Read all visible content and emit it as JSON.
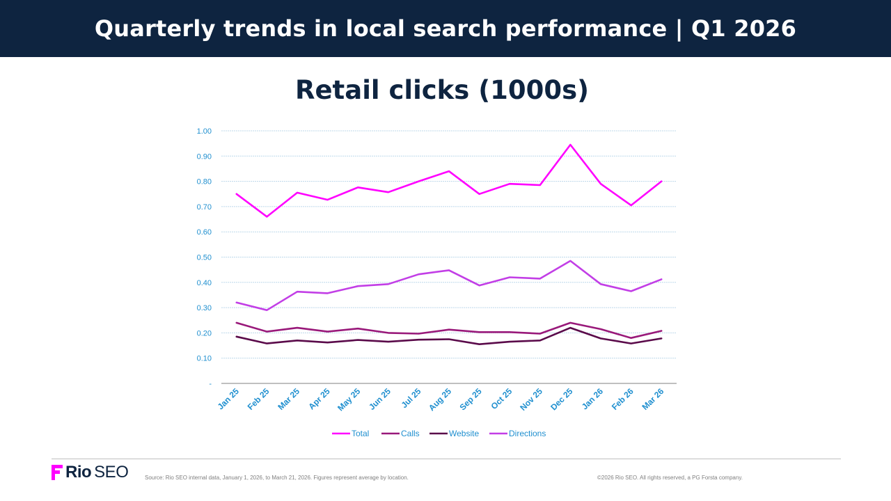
{
  "header": {
    "title": "Quarterly trends in local search performance | Q1 2026"
  },
  "colors": {
    "header_bg": "#0e2440",
    "axis_text": "#1f8fcf",
    "gridline": "#bcd8ea",
    "brand_magenta": "#ff00ff"
  },
  "chart_data": {
    "type": "line",
    "title": "Retail clicks (1000s)",
    "xlabel": "",
    "ylabel": "",
    "ylim": [
      0,
      1.0
    ],
    "yticks": [
      "-",
      "0.10",
      "0.20",
      "0.30",
      "0.40",
      "0.50",
      "0.60",
      "0.70",
      "0.80",
      "0.90",
      "1.00"
    ],
    "grid": true,
    "legend_position": "bottom",
    "categories": [
      "Jan 25",
      "Feb 25",
      "Mar 25",
      "Apr 25",
      "May 25",
      "Jun 25",
      "Jul 25",
      "Aug 25",
      "Sep 25",
      "Oct 25",
      "Nov 25",
      "Dec 25",
      "Jan 26",
      "Feb 26",
      "Mar 26"
    ],
    "series": [
      {
        "name": "Total",
        "color": "#ff00ff",
        "values": [
          0.75,
          0.66,
          0.755,
          0.727,
          0.776,
          0.757,
          0.8,
          0.84,
          0.75,
          0.79,
          0.785,
          0.945,
          0.79,
          0.705,
          0.8
        ]
      },
      {
        "name": "Calls",
        "color": "#99197a",
        "values": [
          0.24,
          0.205,
          0.22,
          0.205,
          0.217,
          0.2,
          0.197,
          0.213,
          0.203,
          0.203,
          0.197,
          0.24,
          0.215,
          0.18,
          0.208
        ]
      },
      {
        "name": "Website",
        "color": "#5a0a4a",
        "values": [
          0.185,
          0.158,
          0.17,
          0.162,
          0.172,
          0.165,
          0.173,
          0.175,
          0.155,
          0.165,
          0.17,
          0.22,
          0.178,
          0.158,
          0.178
        ]
      },
      {
        "name": "Directions",
        "color": "#c23ee6",
        "values": [
          0.32,
          0.29,
          0.363,
          0.357,
          0.385,
          0.393,
          0.432,
          0.448,
          0.388,
          0.42,
          0.415,
          0.485,
          0.393,
          0.365,
          0.412
        ]
      }
    ]
  },
  "footer": {
    "logo_word1": "Rio",
    "logo_word2": "SEO",
    "source_note": "Source: Rio SEO internal data, January 1, 2026, to March 21, 2026. Figures represent average by location.",
    "copyright": "©2026 Rio SEO. All rights reserved, a PG Forsta company."
  }
}
